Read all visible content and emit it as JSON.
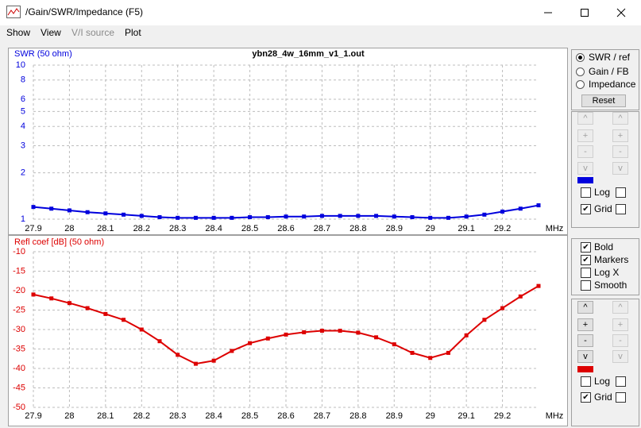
{
  "window": {
    "title": "/Gain/SWR/Impedance (F5)",
    "menu": [
      "Show",
      "View",
      "V/I source",
      "Plot"
    ]
  },
  "chart_data": [
    {
      "type": "line",
      "title": "ybn28_4w_16mm_v1_1.out",
      "y_label": "SWR (50 ohm)",
      "x_label": "MHz",
      "log_y": true,
      "grid": true,
      "markers": true,
      "xlim": [
        27.9,
        29.3
      ],
      "xticks": [
        27.9,
        28,
        28.1,
        28.2,
        28.3,
        28.4,
        28.5,
        28.6,
        28.7,
        28.8,
        28.9,
        29,
        29.1,
        29.2
      ],
      "ylim": [
        1,
        10
      ],
      "yticks": [
        1,
        2,
        3,
        4,
        5,
        6,
        8,
        10
      ],
      "x": [
        27.9,
        27.95,
        28,
        28.05,
        28.1,
        28.15,
        28.2,
        28.25,
        28.3,
        28.35,
        28.4,
        28.45,
        28.5,
        28.55,
        28.6,
        28.65,
        28.7,
        28.75,
        28.8,
        28.85,
        28.9,
        28.95,
        29,
        29.05,
        29.1,
        29.15,
        29.2,
        29.25,
        29.3
      ],
      "series": [
        {
          "name": "SWR",
          "color": "#0000dd",
          "values": [
            1.2,
            1.17,
            1.14,
            1.11,
            1.09,
            1.07,
            1.05,
            1.03,
            1.02,
            1.02,
            1.02,
            1.02,
            1.03,
            1.03,
            1.04,
            1.04,
            1.05,
            1.05,
            1.05,
            1.05,
            1.04,
            1.03,
            1.02,
            1.02,
            1.04,
            1.07,
            1.12,
            1.17,
            1.23
          ]
        }
      ]
    },
    {
      "type": "line",
      "y_label": "Refl coef [dB] (50 ohm)",
      "x_label": "MHz",
      "log_y": false,
      "grid": true,
      "markers": true,
      "xlim": [
        27.9,
        29.3
      ],
      "xticks": [
        27.9,
        28,
        28.1,
        28.2,
        28.3,
        28.4,
        28.5,
        28.6,
        28.7,
        28.8,
        28.9,
        29,
        29.1,
        29.2
      ],
      "ylim": [
        -50,
        -10
      ],
      "yticks": [
        -10,
        -15,
        -20,
        -25,
        -30,
        -35,
        -40,
        -45,
        -50
      ],
      "x": [
        27.9,
        27.95,
        28,
        28.05,
        28.1,
        28.15,
        28.2,
        28.25,
        28.3,
        28.35,
        28.4,
        28.45,
        28.5,
        28.55,
        28.6,
        28.65,
        28.7,
        28.75,
        28.8,
        28.85,
        28.9,
        28.95,
        29,
        29.05,
        29.1,
        29.15,
        29.2,
        29.25,
        29.3
      ],
      "series": [
        {
          "name": "Refl coef",
          "color": "#dd0000",
          "values": [
            -21,
            -22,
            -23.2,
            -24.5,
            -26,
            -27.5,
            -30,
            -33,
            -36.5,
            -38.8,
            -38,
            -35.5,
            -33.5,
            -32.3,
            -31.3,
            -30.7,
            -30.3,
            -30.3,
            -30.8,
            -32,
            -33.8,
            -36,
            -37.3,
            -36,
            -31.5,
            -27.5,
            -24.5,
            -21.5,
            -18.8
          ]
        }
      ]
    }
  ],
  "panel": {
    "modes": [
      {
        "label": "SWR / ref",
        "selected": true
      },
      {
        "label": "Gain / FB",
        "selected": false
      },
      {
        "label": "Impedance",
        "selected": false
      }
    ],
    "reset": "Reset",
    "arrows_top": [
      "^",
      "+",
      "-",
      "v"
    ],
    "top_log": {
      "label": "Log",
      "checked": false
    },
    "top_grid": {
      "label": "Grid",
      "checked": true
    },
    "options": [
      {
        "label": "Bold",
        "checked": true
      },
      {
        "label": "Markers",
        "checked": true
      },
      {
        "label": "Log X",
        "checked": false
      },
      {
        "label": "Smooth",
        "checked": false
      }
    ],
    "arrows_bottom": [
      "^",
      "+",
      "-",
      "v"
    ],
    "bottom_log": {
      "label": "Log",
      "checked": false
    },
    "bottom_grid": {
      "label": "Grid",
      "checked": true
    }
  }
}
